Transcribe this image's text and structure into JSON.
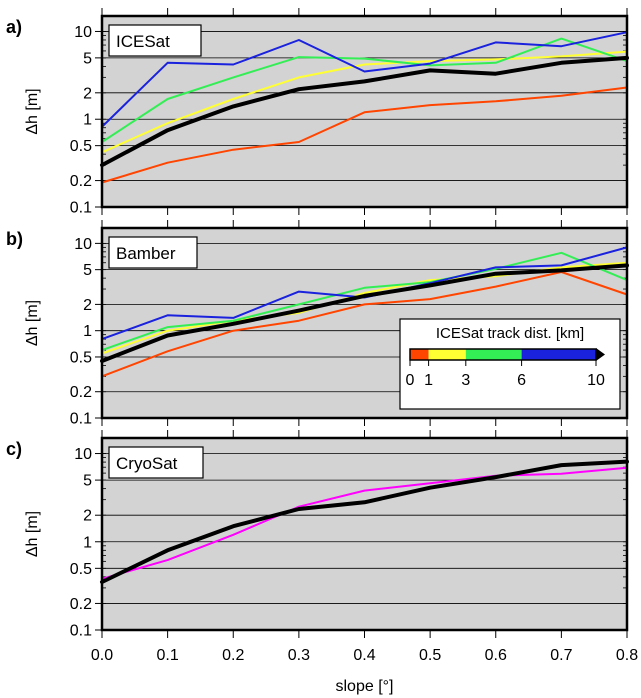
{
  "chart_data": [
    {
      "type": "line",
      "panel_label": "a)",
      "box_label": "ICESat",
      "ylabel": "Δh [m]",
      "yscale": "log",
      "ylim": [
        0.1,
        15
      ],
      "y_ticks": [
        "0.1",
        "0.2",
        "0.5",
        "1",
        "2",
        "5",
        "10"
      ],
      "xlim": [
        0.0,
        0.8
      ],
      "grid": true,
      "x": [
        0.0,
        0.1,
        0.2,
        0.3,
        0.4,
        0.5,
        0.6,
        0.7,
        0.8
      ],
      "series": [
        {
          "color": "#ff4500",
          "width": 2,
          "values": [
            0.19,
            0.32,
            0.45,
            0.55,
            1.2,
            1.45,
            1.6,
            1.85,
            2.3
          ]
        },
        {
          "color": "#ffff33",
          "width": 2,
          "values": [
            0.42,
            0.9,
            1.7,
            3.0,
            4.2,
            4.6,
            4.8,
            5.2,
            5.9
          ]
        },
        {
          "color": "#33ee55",
          "width": 2,
          "values": [
            0.55,
            1.7,
            3.0,
            5.1,
            4.9,
            4.1,
            4.4,
            8.3,
            4.6
          ]
        },
        {
          "color": "#1a22dd",
          "width": 2,
          "values": [
            0.82,
            4.4,
            4.2,
            8.0,
            3.5,
            4.3,
            7.5,
            6.8,
            9.8
          ]
        },
        {
          "color": "#000000",
          "width": 4,
          "values": [
            0.3,
            0.75,
            1.4,
            2.2,
            2.7,
            3.6,
            3.3,
            4.4,
            5.0
          ]
        }
      ]
    },
    {
      "type": "line",
      "panel_label": "b)",
      "box_label": "Bamber",
      "ylabel": "Δh [m]",
      "yscale": "log",
      "ylim": [
        0.1,
        15
      ],
      "y_ticks": [
        "0.1",
        "0.2",
        "0.5",
        "1",
        "2",
        "5",
        "10"
      ],
      "xlim": [
        0.0,
        0.8
      ],
      "grid": true,
      "x": [
        0.0,
        0.1,
        0.2,
        0.3,
        0.4,
        0.5,
        0.6,
        0.7,
        0.8
      ],
      "series": [
        {
          "color": "#ff4500",
          "width": 2,
          "values": [
            0.3,
            0.58,
            1.0,
            1.3,
            2.0,
            2.3,
            3.2,
            4.7,
            2.6
          ]
        },
        {
          "color": "#ffff33",
          "width": 2,
          "values": [
            0.55,
            1.0,
            1.3,
            1.6,
            2.7,
            3.8,
            4.2,
            5.3,
            6.0
          ]
        },
        {
          "color": "#33ee55",
          "width": 2,
          "values": [
            0.6,
            1.1,
            1.3,
            2.0,
            3.1,
            3.6,
            5.1,
            7.8,
            3.8
          ]
        },
        {
          "color": "#1a22dd",
          "width": 2,
          "values": [
            0.8,
            1.5,
            1.4,
            2.8,
            2.4,
            3.5,
            5.3,
            5.6,
            9.0
          ]
        },
        {
          "color": "#000000",
          "width": 4,
          "values": [
            0.45,
            0.88,
            1.2,
            1.7,
            2.5,
            3.3,
            4.5,
            4.9,
            5.6
          ]
        }
      ],
      "colorbar": {
        "title": "ICESat track dist. [km]",
        "ticks": [
          "0",
          "1",
          "3",
          "6",
          "10"
        ],
        "colors": [
          "#ff4500",
          "#ffff33",
          "#33ee55",
          "#1a22dd"
        ]
      }
    },
    {
      "type": "line",
      "panel_label": "c)",
      "box_label": "CryoSat",
      "ylabel": "Δh [m]",
      "xlabel": "slope [°]",
      "yscale": "log",
      "ylim": [
        0.1,
        15
      ],
      "y_ticks": [
        "0.1",
        "0.2",
        "0.5",
        "1",
        "2",
        "5",
        "10"
      ],
      "xlim": [
        0.0,
        0.8
      ],
      "x_ticks": [
        "0.0",
        "0.1",
        "0.2",
        "0.3",
        "0.4",
        "0.5",
        "0.6",
        "0.7",
        "0.8"
      ],
      "grid": true,
      "x": [
        0.0,
        0.1,
        0.2,
        0.3,
        0.4,
        0.5,
        0.6,
        0.7,
        0.8
      ],
      "series": [
        {
          "color": "#ff00ff",
          "width": 2,
          "values": [
            0.38,
            0.62,
            1.2,
            2.5,
            3.8,
            4.6,
            5.6,
            5.9,
            6.9
          ]
        },
        {
          "color": "#000000",
          "width": 4,
          "values": [
            0.35,
            0.8,
            1.5,
            2.35,
            2.8,
            4.1,
            5.4,
            7.4,
            8.1
          ]
        }
      ]
    }
  ]
}
